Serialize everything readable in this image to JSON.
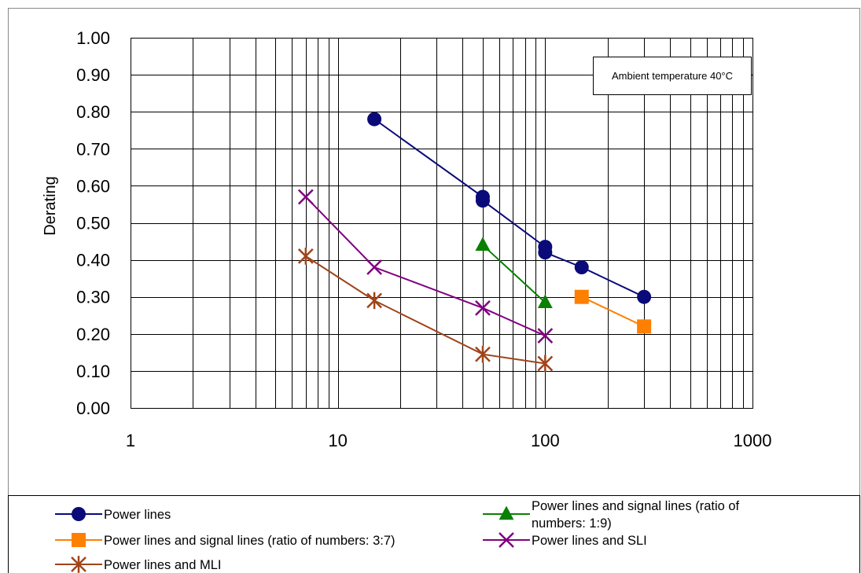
{
  "chart_data": {
    "type": "line",
    "x_scale": "log",
    "xlim": [
      1,
      1000
    ],
    "ylim": [
      0,
      1.0
    ],
    "ylabel": "Derating",
    "xlabel": "",
    "grid": true,
    "x_ticks": [
      "1",
      "10",
      "100",
      "1000"
    ],
    "y_ticks": [
      "0.00",
      "0.10",
      "0.20",
      "0.30",
      "0.40",
      "0.50",
      "0.60",
      "0.70",
      "0.80",
      "0.90",
      "1.00"
    ],
    "annotation": "Ambient temperature 40°C",
    "legend_position": "bottom",
    "series": [
      {
        "name": "Power lines",
        "color": "#0a0a78",
        "marker": "circle",
        "points": [
          [
            15,
            0.78
          ],
          [
            50,
            0.57
          ],
          [
            50,
            0.56
          ],
          [
            100,
            0.435
          ],
          [
            100,
            0.42
          ],
          [
            150,
            0.38
          ],
          [
            300,
            0.3
          ]
        ]
      },
      {
        "name": "Power lines and signal lines (ratio of numbers: 3:7)",
        "color": "#ff7f00",
        "marker": "square",
        "points": [
          [
            150,
            0.3
          ],
          [
            300,
            0.22
          ]
        ]
      },
      {
        "name": "Power lines and MLI",
        "color": "#a0441a",
        "marker": "asterisk",
        "points": [
          [
            7,
            0.41
          ],
          [
            15,
            0.29
          ],
          [
            50,
            0.145
          ],
          [
            100,
            0.12
          ]
        ]
      },
      {
        "name": "Power lines and signal lines (ratio of numbers: 1:9)",
        "color": "#0a8000",
        "marker": "triangle",
        "points": [
          [
            50,
            0.44
          ],
          [
            100,
            0.285
          ]
        ]
      },
      {
        "name": "Power lines and SLI",
        "color": "#800080",
        "marker": "x",
        "points": [
          [
            7,
            0.57
          ],
          [
            15,
            0.38
          ],
          [
            50,
            0.27
          ],
          [
            100,
            0.195
          ]
        ]
      }
    ]
  }
}
